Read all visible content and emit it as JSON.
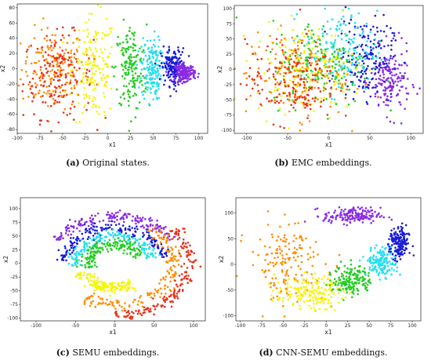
{
  "captions": [
    {
      "tag": "(a)",
      "text": "Original states."
    },
    {
      "tag": "(b)",
      "text": "EMC embeddings."
    },
    {
      "tag": "(c)",
      "text": "SEMU embeddings."
    },
    {
      "tag": "(d)",
      "text": "CNN-SEMU embeddings."
    }
  ],
  "colors": {
    "purple": "#8a2be2",
    "blue": "#1a1ad6",
    "cyan": "#22e0f0",
    "green": "#22cc22",
    "yellow": "#f5f500",
    "orange": "#ff8c00",
    "red": "#e8301a"
  },
  "chart_data": [
    {
      "type": "scatter",
      "title": "",
      "xlabel": "x1",
      "ylabel": "x2",
      "xlim": [
        -100,
        110
      ],
      "ylim": [
        -85,
        85
      ],
      "xticks": [
        -100,
        -75,
        -50,
        -25,
        0,
        25,
        50,
        75,
        100
      ],
      "yticks": [
        -80,
        -60,
        -40,
        -20,
        0,
        20,
        40,
        60,
        80
      ],
      "series": [
        {
          "color": "orange",
          "centroid": [
            -60,
            0
          ],
          "spread": [
            32,
            48
          ]
        },
        {
          "color": "red",
          "centroid": [
            -55,
            -10
          ],
          "spread": [
            35,
            50
          ]
        },
        {
          "color": "yellow",
          "centroid": [
            -15,
            0
          ],
          "spread": [
            22,
            62
          ]
        },
        {
          "color": "green",
          "centroid": [
            25,
            0
          ],
          "spread": [
            16,
            52
          ]
        },
        {
          "color": "cyan",
          "centroid": [
            48,
            0
          ],
          "spread": [
            10,
            38
          ]
        },
        {
          "color": "blue",
          "centroid": [
            72,
            2
          ],
          "spread": [
            12,
            22
          ]
        },
        {
          "color": "purple",
          "centroid": [
            85,
            -5
          ],
          "spread": [
            10,
            10
          ]
        }
      ]
    },
    {
      "type": "scatter",
      "title": "",
      "xlabel": "x1",
      "ylabel": "x2",
      "xlim": [
        -115,
        115
      ],
      "ylim": [
        -105,
        105
      ],
      "xticks": [
        -100,
        -50,
        0,
        50,
        100
      ],
      "yticks": [
        -100,
        -75,
        -50,
        -25,
        0,
        25,
        50,
        75,
        100
      ],
      "series": [
        {
          "color": "purple",
          "centroid": [
            75,
            -20
          ],
          "spread": [
            22,
            50
          ]
        },
        {
          "color": "blue",
          "centroid": [
            45,
            20
          ],
          "spread": [
            30,
            60
          ]
        },
        {
          "color": "cyan",
          "centroid": [
            15,
            30
          ],
          "spread": [
            40,
            60
          ]
        },
        {
          "color": "green",
          "centroid": [
            -10,
            10
          ],
          "spread": [
            55,
            65
          ]
        },
        {
          "color": "yellow",
          "centroid": [
            -30,
            0
          ],
          "spread": [
            55,
            65
          ]
        },
        {
          "color": "orange",
          "centroid": [
            -40,
            -10
          ],
          "spread": [
            55,
            65
          ]
        },
        {
          "color": "red",
          "centroid": [
            -45,
            -20
          ],
          "spread": [
            50,
            60
          ]
        }
      ]
    },
    {
      "type": "scatter",
      "title": "",
      "xlabel": "x1",
      "ylabel": "x2",
      "xlim": [
        -120,
        115
      ],
      "ylim": [
        -105,
        120
      ],
      "xticks": [
        -100,
        -50,
        0,
        50,
        100
      ],
      "yticks": [
        -100,
        -75,
        -50,
        -25,
        0,
        25,
        50,
        75,
        100
      ],
      "series": [
        {
          "color": "purple",
          "arc_radius": 85,
          "arc_from_deg": 150,
          "arc_to_deg": 30
        },
        {
          "color": "blue",
          "arc_radius": 65,
          "arc_from_deg": 175,
          "arc_to_deg": 10
        },
        {
          "color": "cyan",
          "arc_radius": 50,
          "arc_from_deg": 185,
          "arc_to_deg": 10
        },
        {
          "color": "green",
          "arc_radius": 35,
          "arc_from_deg": 195,
          "arc_to_deg": 20
        },
        {
          "color": "yellow",
          "arc_radius": 45,
          "arc_from_deg": 200,
          "arc_to_deg": 300
        },
        {
          "color": "orange",
          "arc_radius": 75,
          "arc_from_deg": 55,
          "arc_to_deg": -120
        },
        {
          "color": "red",
          "arc_radius": 95,
          "arc_from_deg": 40,
          "arc_to_deg": -90
        }
      ]
    },
    {
      "type": "scatter",
      "title": "",
      "xlabel": "x1",
      "ylabel": "x2",
      "xlim": [
        -105,
        110
      ],
      "ylim": [
        -110,
        130
      ],
      "xticks": [
        -100,
        -75,
        -50,
        -25,
        0,
        25,
        50,
        75,
        100
      ],
      "yticks": [
        -100,
        -50,
        0,
        50,
        100
      ],
      "series": [
        {
          "color": "orange",
          "centroid": [
            -45,
            5
          ],
          "spread": [
            40,
            70
          ]
        },
        {
          "color": "yellow",
          "centroid": [
            -20,
            -55
          ],
          "spread": [
            35,
            28
          ]
        },
        {
          "color": "green",
          "centroid": [
            30,
            -30
          ],
          "spread": [
            20,
            28
          ]
        },
        {
          "color": "cyan",
          "centroid": [
            65,
            5
          ],
          "spread": [
            16,
            26
          ]
        },
        {
          "color": "blue",
          "centroid": [
            85,
            40
          ],
          "spread": [
            10,
            30
          ]
        },
        {
          "color": "purple",
          "centroid": [
            30,
            95
          ],
          "spread": [
            30,
            14
          ]
        }
      ]
    }
  ]
}
